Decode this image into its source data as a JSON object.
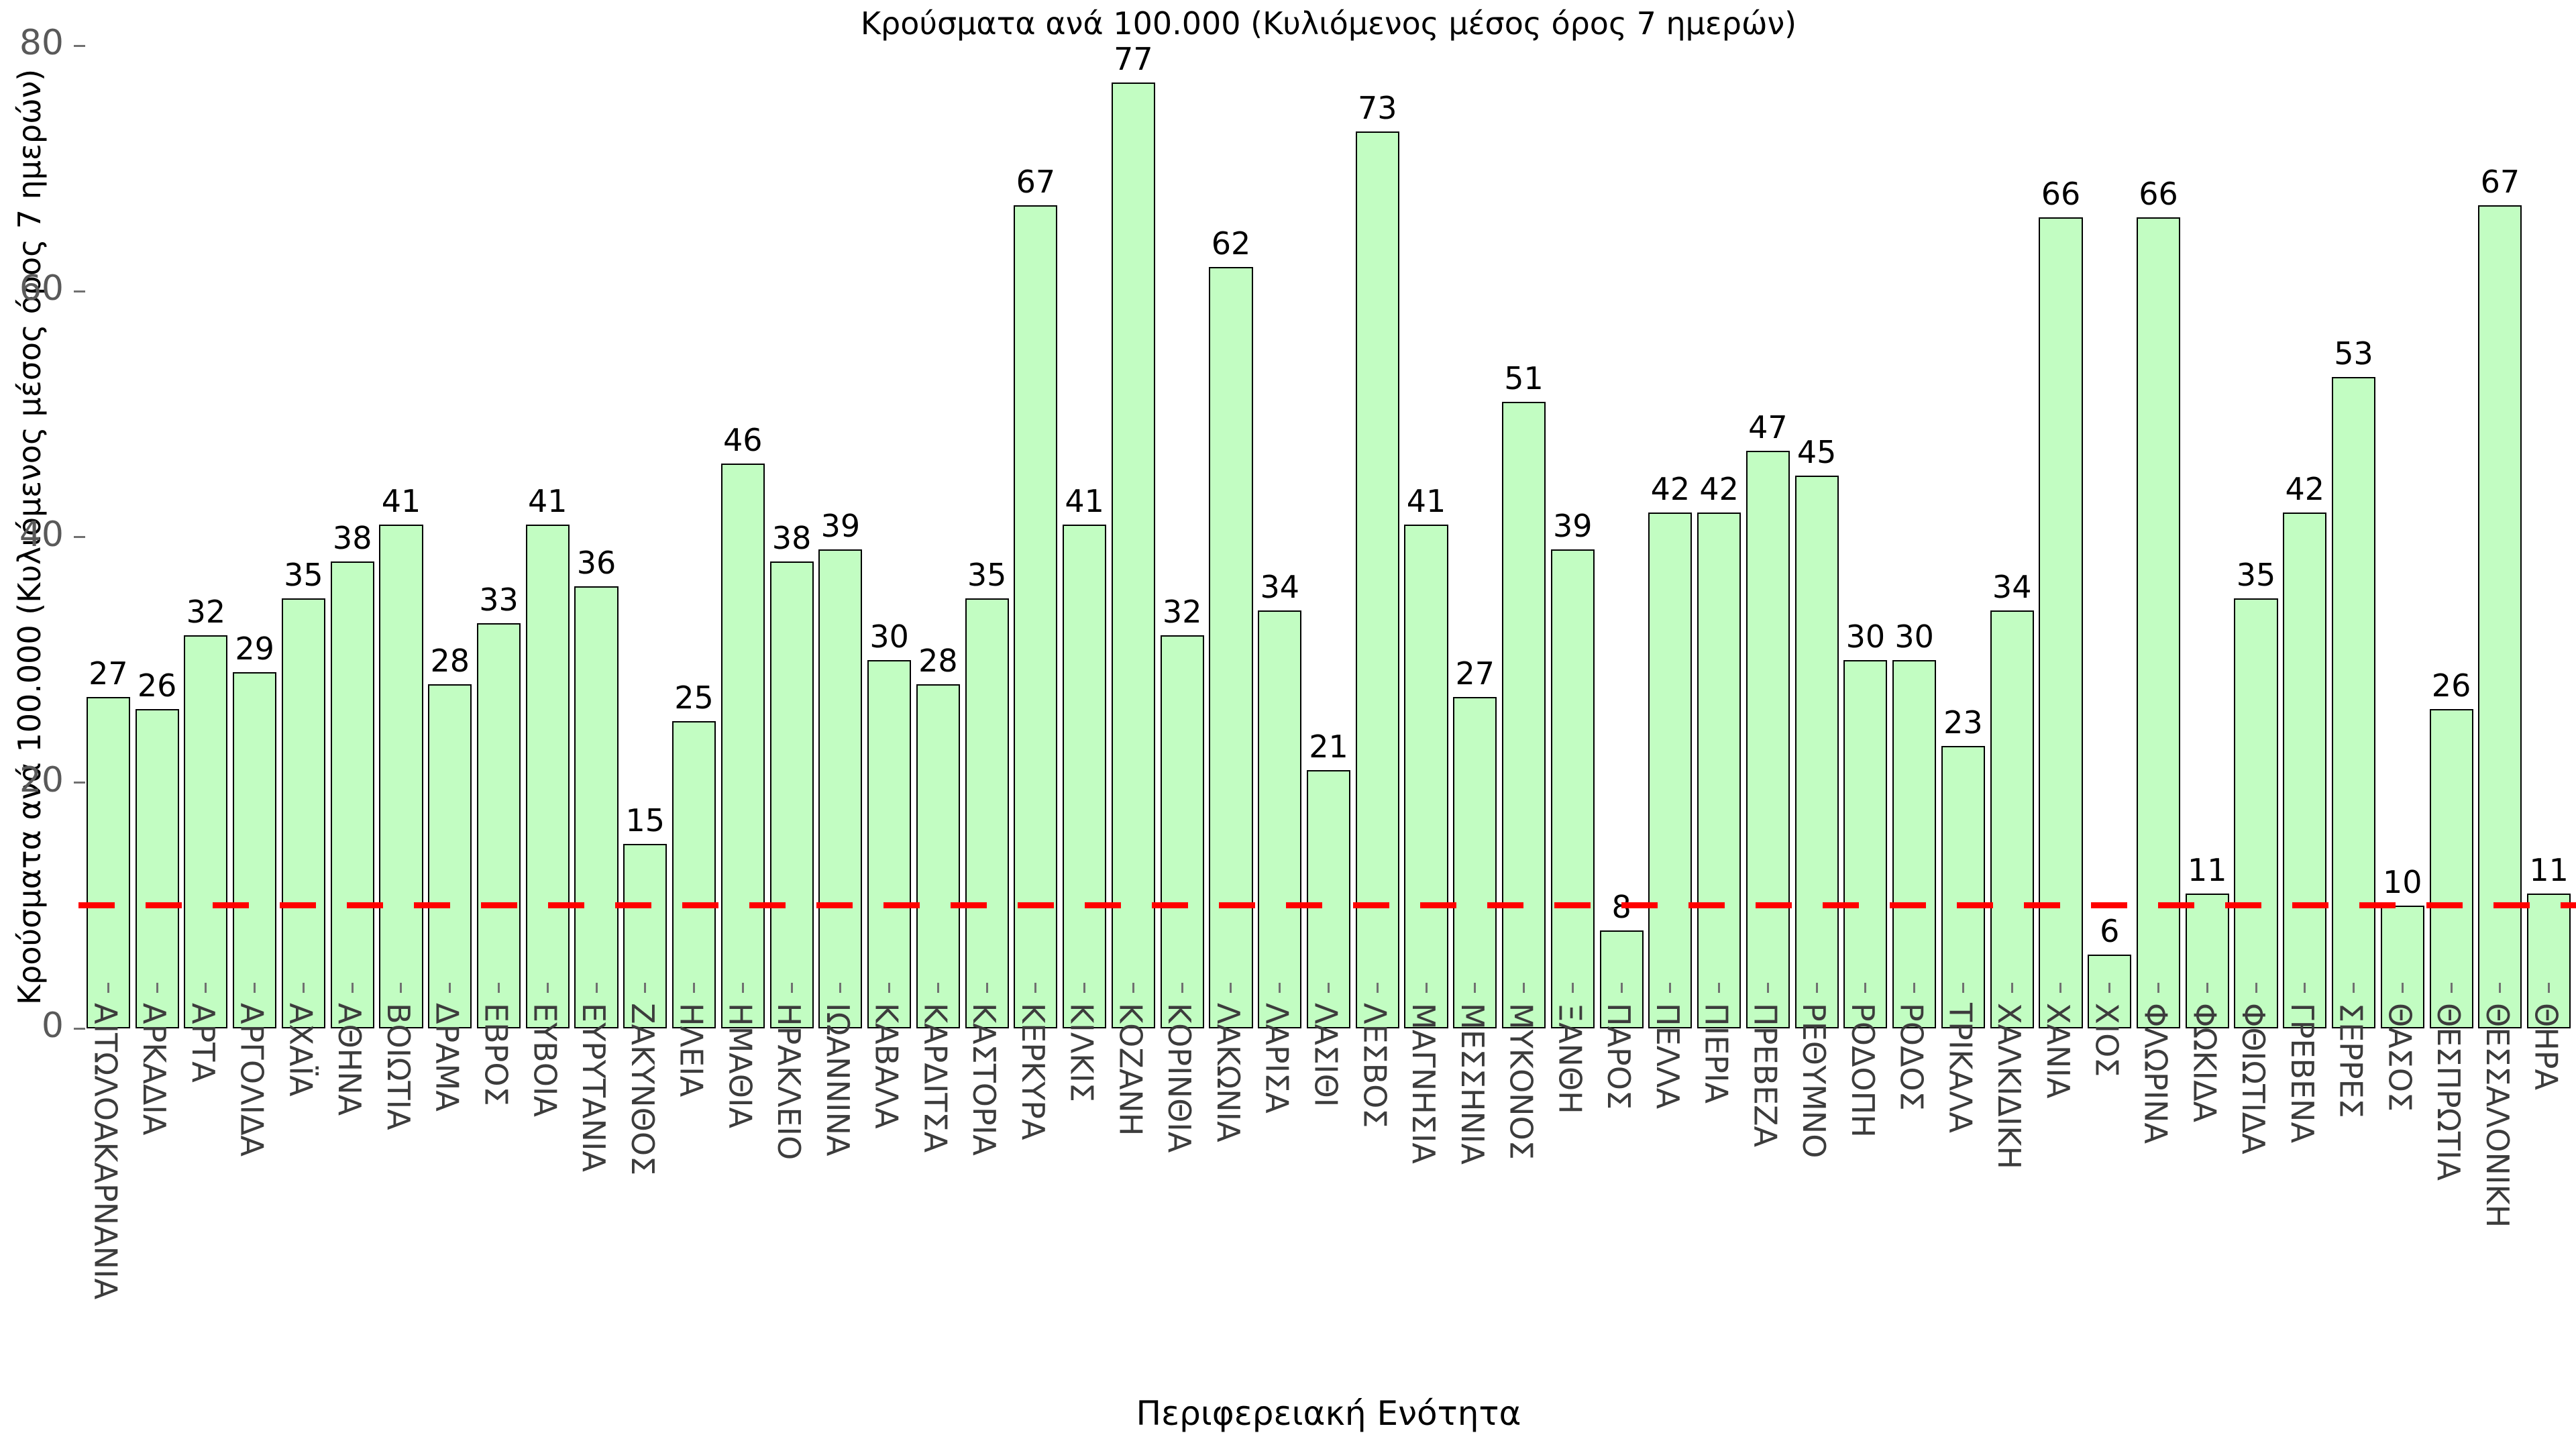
{
  "colors": {
    "bar_fill": "#c2fdc2",
    "bar_border": "#000000",
    "threshold_line": "#ff0000",
    "tick_label": "#595959",
    "category_label": "#3c3c3c"
  },
  "threshold": {
    "value": 10
  },
  "chart_data": {
    "type": "bar",
    "title": "Κρούσματα ανά 100.000 (Κυλιόμενος μέσος όρος 7 ημερών)",
    "xlabel": "Περιφερειακή Ενότητα",
    "ylabel": "Κρούσματα ανά 100.000 (Κυλιόμενος μέσος όρος 7 ημερών)",
    "ylim": [
      0,
      80
    ],
    "yticks": [
      0,
      20,
      40,
      60,
      80
    ],
    "grid": false,
    "legend": null,
    "bar_labels_shown": true,
    "threshold_line": {
      "y": 10,
      "style": "dashed",
      "color": "#ff0000"
    },
    "categories": [
      "ΑΙΤΩΛΟΑΚΑΡΝΑΝΙΑ",
      "ΑΡΚΑΔΙΑ",
      "ΑΡΤΑ",
      "ΑΡΓΟΛΙΔΑ",
      "ΑΧΑΪΑ",
      "ΑΘΗΝΑ",
      "ΒΟΙΩΤΙΑ",
      "ΔΡΑΜΑ",
      "ΕΒΡΟΣ",
      "ΕΥΒΟΙΑ",
      "ΕΥΡΥΤΑΝΙΑ",
      "ΖΑΚΥΝΘΟΣ",
      "ΗΛΕΙΑ",
      "ΗΜΑΘΙΑ",
      "ΗΡΑΚΛΕΙΟ",
      "ΙΩΑΝΝΙΝΑ",
      "ΚΑΒΑΛΑ",
      "ΚΑΡΔΙΤΣΑ",
      "ΚΑΣΤΟΡΙΑ",
      "ΚΕΡΚΥΡΑ",
      "ΚΙΛΚΙΣ",
      "ΚΟΖΑΝΗ",
      "ΚΟΡΙΝΘΙΑ",
      "ΛΑΚΩΝΙΑ",
      "ΛΑΡΙΣΑ",
      "ΛΑΣΙΘΙ",
      "ΛΕΣΒΟΣ",
      "ΜΑΓΝΗΣΙΑ",
      "ΜΕΣΣΗΝΙΑ",
      "ΜΥΚΟΝΟΣ",
      "ΞΑΝΘΗ",
      "ΠΑΡΟΣ",
      "ΠΕΛΛΑ",
      "ΠΙΕΡΙΑ",
      "ΠΡΕΒΕΖΑ",
      "ΡΕΘΥΜΝΟ",
      "ΡΟΔΟΠΗ",
      "ΡΟΔΟΣ",
      "ΤΡΙΚΑΛΑ",
      "ΧΑΛΚΙΔΙΚΗ",
      "ΧΑΝΙΑ",
      "ΧΙΟΣ",
      "ΦΛΩΡΙΝΑ",
      "ΦΩΚΙΔΑ",
      "ΦΘΙΩΤΙΔΑ",
      "ΓΡΕΒΕΝΑ",
      "ΣΕΡΡΕΣ",
      "ΘΑΣΟΣ",
      "ΘΕΣΠΡΩΤΙΑ",
      "ΘΕΣΣΑΛΟΝΙΚΗ",
      "ΘΗΡΑ"
    ],
    "values": [
      27,
      26,
      32,
      29,
      35,
      38,
      41,
      28,
      33,
      41,
      36,
      15,
      25,
      46,
      38,
      39,
      30,
      28,
      35,
      67,
      41,
      77,
      32,
      62,
      34,
      21,
      73,
      41,
      27,
      51,
      39,
      8,
      42,
      42,
      47,
      45,
      30,
      30,
      23,
      34,
      66,
      6,
      66,
      11,
      35,
      42,
      53,
      10,
      26,
      67,
      11
    ]
  }
}
